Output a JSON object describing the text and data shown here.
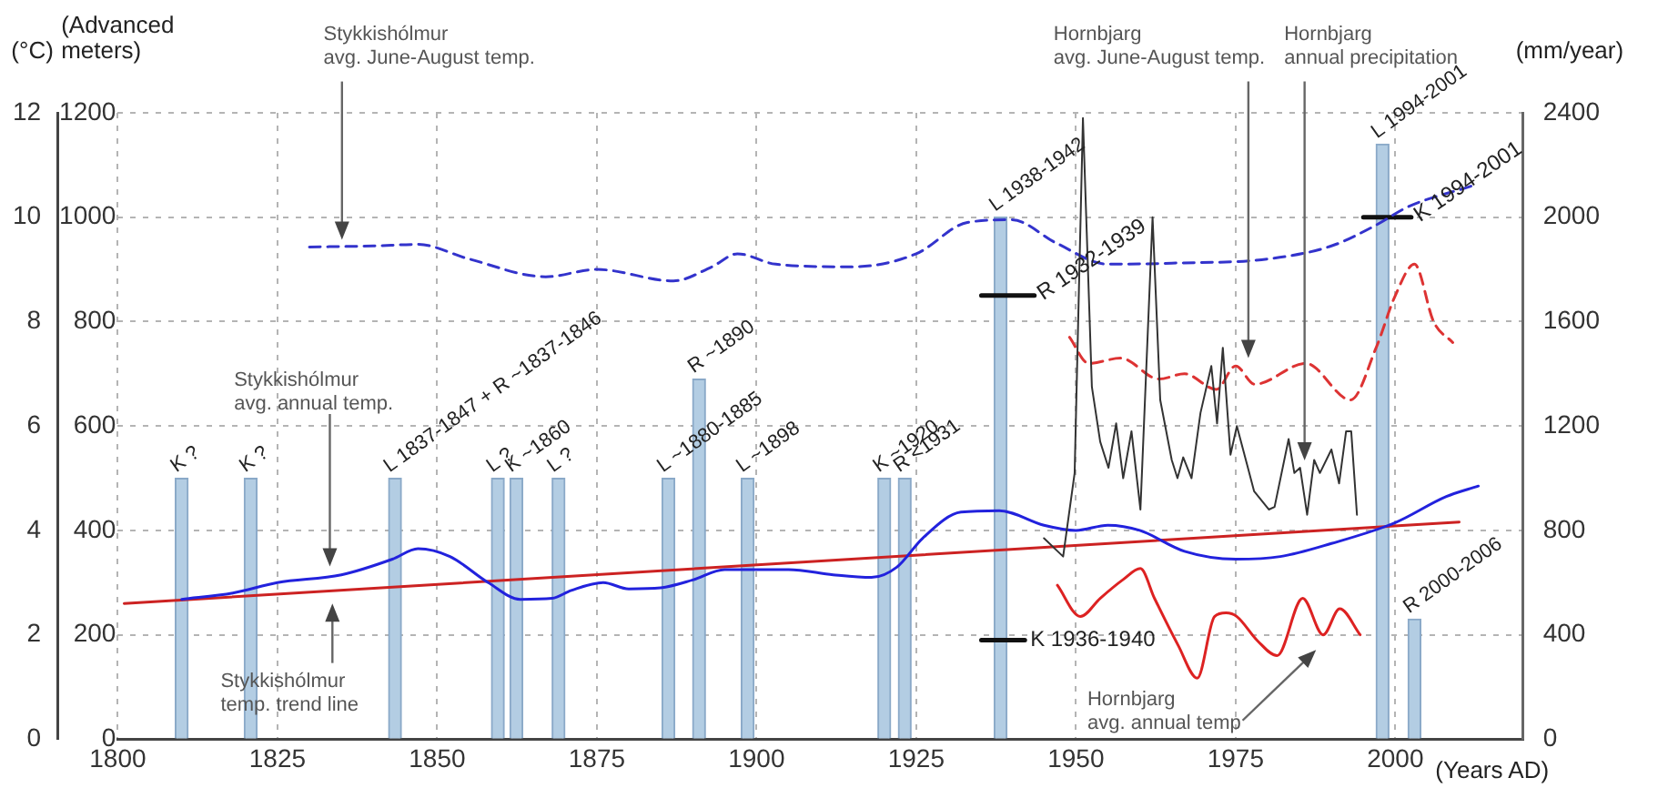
{
  "chart_data": {
    "type": "line",
    "xlabel": "(Years AD)",
    "ylabel": "(Advanced meters)",
    "y3label": "(°C)",
    "y2label": "(mm/year)",
    "xlim": [
      1800,
      2020
    ],
    "xticks": [
      1800,
      1825,
      1850,
      1875,
      1900,
      1925,
      1950,
      1975,
      2000
    ],
    "ylim": [
      0,
      1200
    ],
    "yticks": [
      0,
      200,
      400,
      600,
      800,
      1000,
      1200
    ],
    "y3lim": [
      0,
      12
    ],
    "y3ticks": [
      0,
      2,
      4,
      6,
      8,
      10,
      12
    ],
    "y2lim": [
      0,
      2400
    ],
    "y2ticks": [
      0,
      400,
      800,
      1200,
      1600,
      2000,
      2400
    ],
    "grid": true,
    "marker": "none",
    "annotations": [
      {
        "text": "K ?",
        "x": 1810,
        "y": 500
      },
      {
        "text": "K ?",
        "x": 1820.8,
        "y": 500
      },
      {
        "text": "L 1837-1847 + R ~1837-1846",
        "x": 1843.4,
        "y": 500
      },
      {
        "text": "L ?",
        "x": 1859.5,
        "y": 500
      },
      {
        "text": "K ~1860",
        "x": 1862.4,
        "y": 500
      },
      {
        "text": "L ?",
        "x": 1869,
        "y": 500
      },
      {
        "text": "L ~1880-1885",
        "x": 1886.2,
        "y": 500
      },
      {
        "text": "R ~1890",
        "x": 1891,
        "y": 690
      },
      {
        "text": "L ~1898",
        "x": 1898.6,
        "y": 500
      },
      {
        "text": "K ~1920",
        "x": 1920,
        "y": 500
      },
      {
        "text": "R <1931",
        "x": 1923.2,
        "y": 500
      },
      {
        "text": "L 1938-1942",
        "x": 1938.2,
        "y": 1000
      },
      {
        "text": "L 1994-2001",
        "x": 1998,
        "y": 1140
      },
      {
        "text": "R 2000-2006",
        "x": 2003,
        "y": 230
      }
    ],
    "series": [
      {
        "name": "Stykkishólmur avg. June-August temp.",
        "axis": "y3",
        "line_style": "dashed",
        "color": "#3333cc",
        "x": [
          1830,
          1840,
          1847,
          1855,
          1867,
          1875,
          1887,
          1893,
          1897,
          1903,
          1915,
          1925,
          1933,
          1940,
          1947,
          1955,
          1965,
          1980,
          1990,
          1997,
          2002,
          2012
        ],
        "values": [
          9.43,
          9.45,
          9.48,
          9.2,
          8.86,
          9.0,
          8.78,
          9.05,
          9.3,
          9.1,
          9.05,
          9.3,
          9.9,
          9.95,
          9.5,
          9.1,
          9.12,
          9.2,
          9.45,
          9.85,
          10.2,
          10.6
        ]
      },
      {
        "name": "Stykkishólmur avg. annual temp.",
        "axis": "y3",
        "line_style": "solid",
        "color": "#2222dd",
        "x": [
          1810,
          1818,
          1825,
          1835,
          1843,
          1847,
          1852,
          1858,
          1863,
          1868,
          1871,
          1876,
          1880,
          1885,
          1890,
          1895,
          1905,
          1912,
          1918,
          1922,
          1926,
          1932,
          1938,
          1945,
          1950,
          1955,
          1960,
          1967,
          1975,
          1982,
          1990,
          2000,
          2008,
          2013
        ],
        "values": [
          2.68,
          2.8,
          3.0,
          3.15,
          3.45,
          3.65,
          3.5,
          3.0,
          2.68,
          2.7,
          2.85,
          3.0,
          2.88,
          2.9,
          3.05,
          3.25,
          3.25,
          3.15,
          3.1,
          3.3,
          3.85,
          4.35,
          4.38,
          4.1,
          4.0,
          4.1,
          4.0,
          3.6,
          3.45,
          3.5,
          3.75,
          4.15,
          4.65,
          4.85
        ]
      },
      {
        "name": "Stykkishólmur temp. trend line",
        "axis": "y3",
        "line_style": "solid",
        "color": "#cc2222",
        "x": [
          1801,
          2010
        ],
        "values": [
          2.6,
          4.16
        ]
      },
      {
        "name": "Hornbjarg avg. June-August temp.",
        "axis": "y3",
        "line_style": "dashed",
        "color": "#dd3333",
        "x": [
          1949,
          1952,
          1957,
          1963,
          1967,
          1972,
          1975,
          1978,
          1986,
          1993,
          1997,
          2000,
          2003,
          2006,
          2009
        ],
        "values": [
          7.7,
          7.2,
          7.3,
          6.9,
          7.0,
          6.7,
          7.15,
          6.8,
          7.2,
          6.5,
          7.5,
          8.5,
          9.1,
          8.0,
          7.6
        ]
      },
      {
        "name": "Hornbjarg avg. annual temp",
        "axis": "y3",
        "line_style": "solid",
        "color": "#dd2222",
        "x": [
          1947.1,
          1950.7,
          1953.8,
          1957.4,
          1960.1,
          1962.3,
          1966,
          1969,
          1971.7,
          1973.5,
          1975.2,
          1978.4,
          1981.5,
          1985.5,
          1988.7,
          1991.3,
          1994.5
        ],
        "values": [
          2.95,
          2.35,
          2.7,
          3.06,
          3.27,
          2.7,
          1.8,
          1.17,
          2.35,
          2.42,
          2.35,
          1.89,
          1.6,
          2.7,
          2.0,
          2.5,
          2.0
        ]
      },
      {
        "name": "Hornbjarg annual precipitation",
        "axis": "y2",
        "line_style": "solid",
        "color": "#333333",
        "x": [
          1945,
          1948,
          1949.8,
          1951.1,
          1952.5,
          1953.8,
          1955.1,
          1956.3,
          1957.4,
          1958.7,
          1960.1,
          1962,
          1963.2,
          1965,
          1965.9,
          1966.8,
          1968.1,
          1969.5,
          1971.2,
          1972.1,
          1973,
          1974.2,
          1975.2,
          1977.9,
          1980.2,
          1981.1,
          1983.3,
          1984.2,
          1985.1,
          1986.2,
          1987.3,
          1988.2,
          1990,
          1991.2,
          1992.3,
          1993.1,
          1994
        ],
        "values": [
          770,
          700,
          1020,
          2380,
          1350,
          1140,
          1040,
          1210,
          1000,
          1180,
          880,
          2000,
          1300,
          1070,
          1000,
          1080,
          1000,
          1250,
          1430,
          1210,
          1500,
          1090,
          1200,
          950,
          880,
          890,
          1150,
          1020,
          1040,
          860,
          1070,
          1020,
          1110,
          980,
          1180,
          1180,
          860
        ]
      },
      {
        "type": "bar",
        "color": "#b3cde3",
        "x": [
          1810,
          1820.8,
          1843.4,
          1859.5,
          1862.4,
          1869,
          1886.2,
          1891,
          1898.6,
          1920,
          1923.2,
          1938.2,
          1998,
          2003
        ],
        "values": [
          500,
          500,
          500,
          500,
          500,
          500,
          500,
          690,
          500,
          500,
          500,
          1000,
          1140,
          230
        ]
      },
      {
        "name": "R 1932-1939",
        "line_style": "solid",
        "color": "#111111",
        "x": [
          1935.2,
          1943.5
        ],
        "values": [
          850,
          850
        ]
      },
      {
        "name": "K 1936-1940",
        "line_style": "solid",
        "color": "#111111",
        "x": [
          1935.2,
          1942
        ],
        "values": [
          190,
          190
        ]
      },
      {
        "name": "K 1994-2001",
        "line_style": "solid",
        "color": "#111111",
        "x": [
          1995,
          2002.5
        ],
        "values": [
          1000,
          1000
        ]
      }
    ]
  }
}
